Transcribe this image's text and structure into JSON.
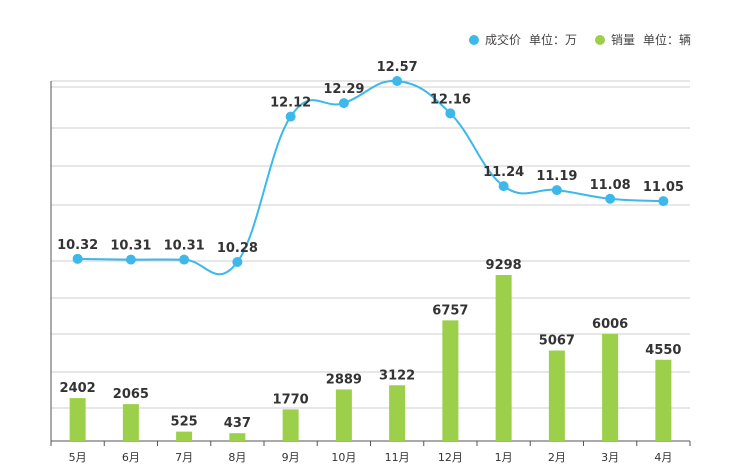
{
  "header": {
    "title_fragment": ""
  },
  "legend": [
    {
      "label": "成交价",
      "unit": "单位：万",
      "color": "#3db8ea"
    },
    {
      "label": "销量",
      "unit": "单位：辆",
      "color": "#9ccf4a"
    }
  ],
  "chart_data": {
    "type": "bar+line",
    "categories": [
      "5月",
      "6月",
      "7月",
      "8月",
      "9月",
      "10月",
      "11月",
      "12月",
      "1月",
      "2月",
      "3月",
      "4月"
    ],
    "series": [
      {
        "name": "成交价",
        "unit": "单位：万",
        "type": "line",
        "color": "#3db8ea",
        "values": [
          10.32,
          10.31,
          10.31,
          10.28,
          12.12,
          12.29,
          12.57,
          12.16,
          11.24,
          11.19,
          11.08,
          11.05
        ]
      },
      {
        "name": "销量",
        "unit": "单位：辆",
        "type": "bar",
        "color": "#9ccf4a",
        "values": [
          2402,
          2065,
          525,
          437,
          1770,
          2889,
          3122,
          6757,
          9298,
          5067,
          6006,
          4550
        ]
      }
    ],
    "grid": true,
    "legend_position": "top-right"
  }
}
